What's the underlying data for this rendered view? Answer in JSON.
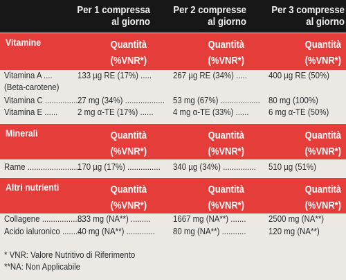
{
  "header": {
    "col1": [
      "Per 1 compressa",
      "al giorno"
    ],
    "col2": [
      "Per 2 compresse",
      "al giorno"
    ],
    "col3": [
      "Per 3 compresse",
      "al giorno"
    ]
  },
  "sections": [
    {
      "title": "Vitamine",
      "q_label": [
        "Quantità",
        "(%VNR*)"
      ],
      "rows": [
        {
          "name": "Vitamina A ....",
          "v1": "133 µg RE (17%) .....",
          "v2": "267 µg RE (34%) .....",
          "v3": "400 µg RE (50%)"
        },
        {
          "name": "(Beta-carotene)",
          "v1": "",
          "v2": "",
          "v3": ""
        },
        {
          "name": "Vitamina C ..................",
          "v1": "27 mg  (34%) ..................",
          "v2": "53 mg (67%) ..................",
          "v3": "80 mg  (100%)"
        },
        {
          "name": "Vitamina E ......",
          "v1": "2 mg α-TE (17%) ......",
          "v2": "4 mg α-TE (33%) ......",
          "v3": "6 mg α-TE (50%)"
        }
      ]
    },
    {
      "title": "Minerali",
      "q_label": [
        "Quantità",
        "(%VNR*)"
      ],
      "rows": [
        {
          "name": "Rame ........................",
          "v1": "170 µg (17%) ...............",
          "v2": "340 µg (34%) ...............",
          "v3": "510 µg (51%)"
        }
      ]
    },
    {
      "title": "Altri nutrienti",
      "q_label": [
        "Quantità",
        "(%VNR*)"
      ],
      "rows": [
        {
          "name": "Collagene ...................",
          "v1": "833 mg (NA**) .........",
          "v2": "1667 mg (NA**) .......",
          "v3": "2500 mg (NA**)"
        },
        {
          "name": "Acido ialuronico .........",
          "v1": "40 mg (NA**) .............",
          "v2": "80 mg (NA**) ...........",
          "v3": "120 mg (NA**)"
        }
      ]
    }
  ],
  "notes": [
    "* VNR: Valore Nutritivo di Riferimento",
    "**NA: Non Applicabile"
  ]
}
